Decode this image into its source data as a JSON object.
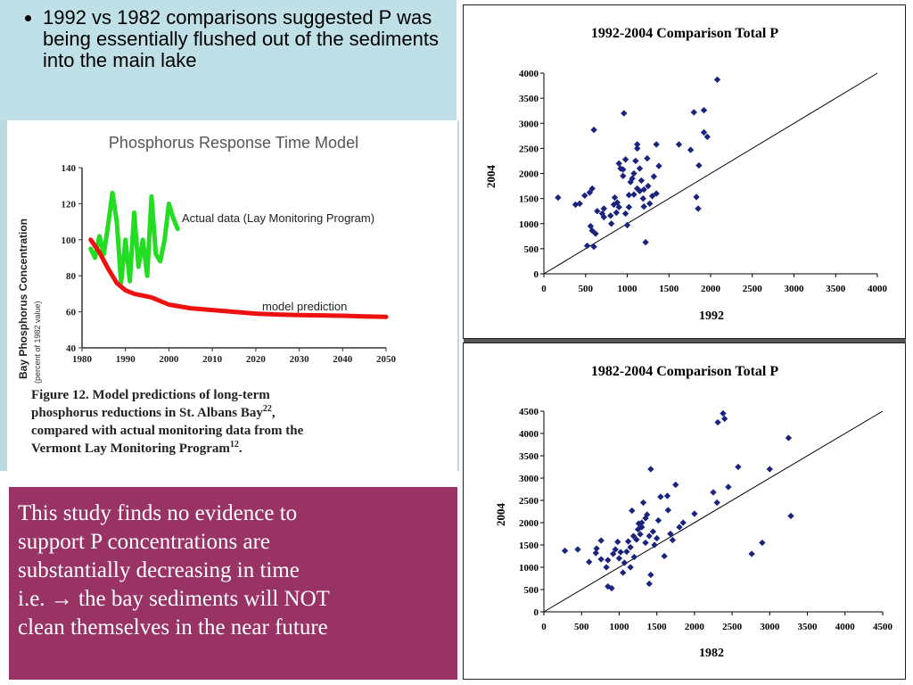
{
  "bullet": {
    "text": "1992 vs 1982 comparisons suggested P was being essentially flushed out of the sediments into the main lake"
  },
  "conclusion": {
    "lines": [
      "This study finds no evidence to",
      "support P concentrations are",
      "substantially decreasing in time",
      "i.e. → the bay sediments will NOT",
      "clean themselves in the near future"
    ]
  },
  "figure_caption": {
    "line1": "Figure 12. Model predictions of long-term",
    "line2": "phosphorus reductions in St. Albans Bay",
    "line2_sup": "22",
    "line2_end": ",",
    "line3": "compared with actual monitoring data from the",
    "line4": "Vermont Lay Monitoring Program",
    "line4_sup": "12",
    "line4_end": "."
  },
  "colors": {
    "accent_panel": "#993366",
    "note_bg": "#bfe0e6",
    "point_color": "#1a237e",
    "actual_series": "#22dd22",
    "model_series": "#ee1111"
  },
  "chart_data": [
    {
      "type": "line",
      "title": "Phosphorus Response Time Model",
      "ylabel": "Bay Phosphorus Concentration",
      "ylabel_sub": "(percent of 1982 value)",
      "xlabel": "",
      "xlim": [
        1980,
        2050
      ],
      "ylim": [
        40,
        140
      ],
      "x_ticks": [
        1980,
        1990,
        2000,
        2010,
        2020,
        2030,
        2040,
        2050
      ],
      "y_ticks": [
        40,
        60,
        80,
        100,
        120,
        140
      ],
      "grid": false,
      "series": [
        {
          "name": "Actual data (Lay Monitoring Program)",
          "x": [
            1982,
            1983,
            1984,
            1985,
            1986,
            1987,
            1988,
            1989,
            1990,
            1991,
            1992,
            1993,
            1994,
            1995,
            1996,
            1997,
            1998,
            1999,
            2000,
            2001,
            2002
          ],
          "y": [
            95,
            90,
            102,
            92,
            108,
            126,
            110,
            76,
            100,
            77,
            115,
            85,
            100,
            80,
            124,
            92,
            88,
            100,
            120,
            112,
            106
          ]
        },
        {
          "name": "model prediction",
          "x": [
            1982,
            1984,
            1986,
            1988,
            1990,
            1992,
            1994,
            1996,
            1998,
            2000,
            2005,
            2010,
            2015,
            2020,
            2025,
            2030,
            2035,
            2040,
            2045,
            2050
          ],
          "y": [
            100,
            93,
            84,
            76,
            72,
            70,
            69,
            68,
            66,
            64,
            62,
            61,
            60,
            59,
            58.5,
            58.2,
            58,
            57.8,
            57.5,
            57.2
          ]
        }
      ]
    },
    {
      "type": "scatter",
      "title": "1992-2004 Comparison  Total P",
      "xlabel": "1992",
      "ylabel": "2004",
      "xlim": [
        0,
        4000
      ],
      "ylim": [
        0,
        4000
      ],
      "x_ticks": [
        0,
        500,
        1000,
        1500,
        2000,
        2500,
        3000,
        3500,
        4000
      ],
      "y_ticks": [
        0,
        500,
        1000,
        1500,
        2000,
        2500,
        3000,
        3500,
        4000
      ],
      "reference_line": "1:1",
      "grid": false,
      "points": [
        [
          170,
          1520
        ],
        [
          380,
          1380
        ],
        [
          430,
          1400
        ],
        [
          490,
          1560
        ],
        [
          550,
          1620
        ],
        [
          580,
          1700
        ],
        [
          520,
          560
        ],
        [
          560,
          950
        ],
        [
          580,
          860
        ],
        [
          600,
          540
        ],
        [
          620,
          800
        ],
        [
          600,
          2870
        ],
        [
          640,
          1250
        ],
        [
          700,
          1200
        ],
        [
          720,
          1300
        ],
        [
          720,
          1130
        ],
        [
          800,
          1160
        ],
        [
          840,
          1380
        ],
        [
          850,
          1520
        ],
        [
          880,
          1420
        ],
        [
          900,
          1330
        ],
        [
          810,
          1000
        ],
        [
          870,
          1220
        ],
        [
          900,
          2200
        ],
        [
          920,
          2100
        ],
        [
          950,
          1950
        ],
        [
          950,
          2080
        ],
        [
          980,
          2280
        ],
        [
          980,
          1200
        ],
        [
          1020,
          1330
        ],
        [
          1020,
          1570
        ],
        [
          1040,
          1830
        ],
        [
          1060,
          1900
        ],
        [
          1080,
          1580
        ],
        [
          1080,
          2000
        ],
        [
          1100,
          2250
        ],
        [
          1120,
          1700
        ],
        [
          1120,
          2500
        ],
        [
          1120,
          2580
        ],
        [
          1150,
          1650
        ],
        [
          1150,
          2100
        ],
        [
          1170,
          1860
        ],
        [
          1190,
          1500
        ],
        [
          1200,
          1340
        ],
        [
          1200,
          1680
        ],
        [
          1220,
          630
        ],
        [
          1240,
          2300
        ],
        [
          1250,
          1750
        ],
        [
          1270,
          1400
        ],
        [
          1300,
          1550
        ],
        [
          1320,
          1940
        ],
        [
          1350,
          1600
        ],
        [
          1350,
          2580
        ],
        [
          1380,
          2150
        ],
        [
          1000,
          970
        ],
        [
          960,
          3200
        ],
        [
          1620,
          2580
        ],
        [
          1760,
          2470
        ],
        [
          1800,
          3220
        ],
        [
          1830,
          1530
        ],
        [
          1850,
          1300
        ],
        [
          1860,
          2160
        ],
        [
          1920,
          2820
        ],
        [
          1960,
          2730
        ],
        [
          1920,
          3260
        ],
        [
          2080,
          3870
        ]
      ]
    },
    {
      "type": "scatter",
      "title": "1982-2004 Comparison   Total P",
      "xlabel": "1982",
      "ylabel": "2004",
      "xlim": [
        0,
        4500
      ],
      "ylim": [
        0,
        4500
      ],
      "x_ticks": [
        0,
        500,
        1000,
        1500,
        2000,
        2500,
        3000,
        3500,
        4000,
        4500
      ],
      "y_ticks": [
        0,
        500,
        1000,
        1500,
        2000,
        2500,
        3000,
        3500,
        4000,
        4500
      ],
      "reference_line": "1:1",
      "grid": false,
      "points": [
        [
          280,
          1370
        ],
        [
          450,
          1400
        ],
        [
          600,
          1120
        ],
        [
          690,
          1320
        ],
        [
          700,
          1420
        ],
        [
          760,
          1600
        ],
        [
          760,
          1180
        ],
        [
          830,
          1000
        ],
        [
          850,
          1160
        ],
        [
          850,
          570
        ],
        [
          900,
          530
        ],
        [
          920,
          1300
        ],
        [
          950,
          1400
        ],
        [
          980,
          1570
        ],
        [
          1000,
          1200
        ],
        [
          1020,
          1340
        ],
        [
          1050,
          880
        ],
        [
          1070,
          1100
        ],
        [
          1100,
          1350
        ],
        [
          1120,
          1580
        ],
        [
          1150,
          1450
        ],
        [
          1150,
          1000
        ],
        [
          1170,
          2270
        ],
        [
          1190,
          1700
        ],
        [
          1200,
          1230
        ],
        [
          1230,
          1620
        ],
        [
          1250,
          1850
        ],
        [
          1260,
          1980
        ],
        [
          1280,
          1740
        ],
        [
          1300,
          2000
        ],
        [
          1300,
          1900
        ],
        [
          1320,
          2450
        ],
        [
          1350,
          1550
        ],
        [
          1350,
          2100
        ],
        [
          1370,
          2180
        ],
        [
          1400,
          630
        ],
        [
          1400,
          1700
        ],
        [
          1420,
          830
        ],
        [
          1420,
          3200
        ],
        [
          1450,
          1800
        ],
        [
          1470,
          1500
        ],
        [
          1500,
          1650
        ],
        [
          1520,
          2050
        ],
        [
          1550,
          2580
        ],
        [
          1600,
          1250
        ],
        [
          1640,
          2600
        ],
        [
          1650,
          2280
        ],
        [
          1680,
          1750
        ],
        [
          1710,
          1610
        ],
        [
          1750,
          2850
        ],
        [
          1800,
          1900
        ],
        [
          1850,
          2000
        ],
        [
          2000,
          2200
        ],
        [
          2250,
          2680
        ],
        [
          2300,
          2450
        ],
        [
          2310,
          4250
        ],
        [
          2380,
          4450
        ],
        [
          2400,
          4330
        ],
        [
          2450,
          2800
        ],
        [
          2580,
          3250
        ],
        [
          2760,
          1300
        ],
        [
          2900,
          1550
        ],
        [
          3000,
          3200
        ],
        [
          3250,
          3900
        ],
        [
          3280,
          2150
        ]
      ]
    }
  ]
}
